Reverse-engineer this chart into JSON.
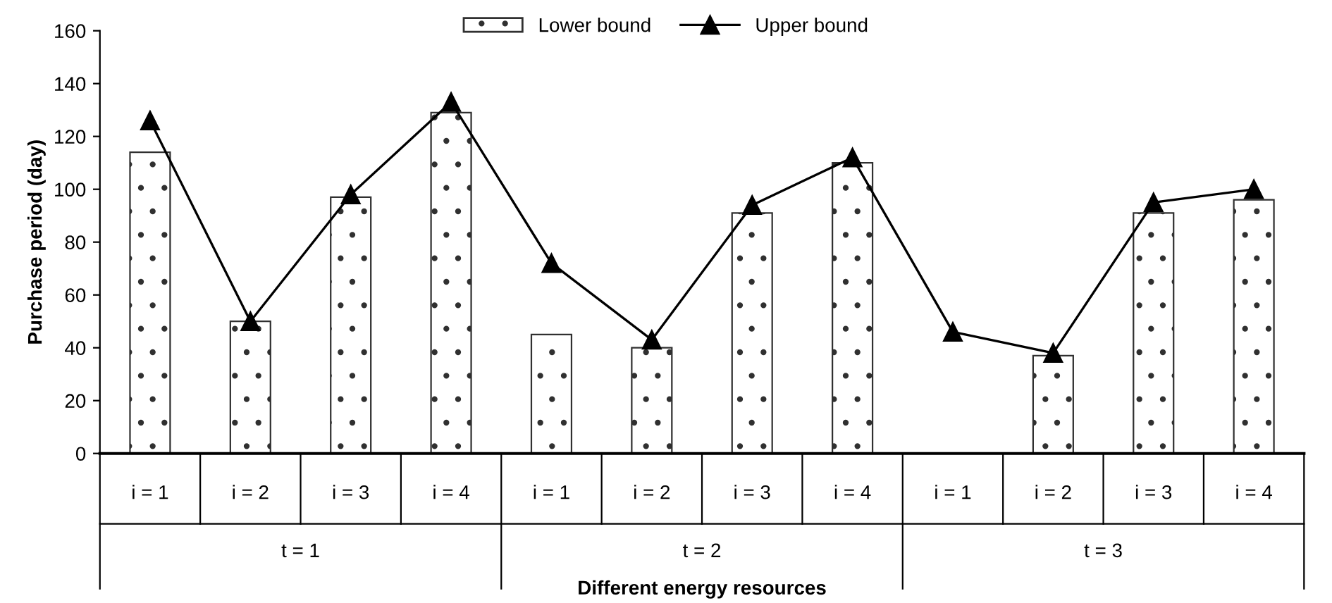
{
  "chart_data": {
    "type": "bar",
    "xlabel": "Different energy resources",
    "ylabel": "Purchase period (day)",
    "categories": [
      "i = 1",
      "i = 2",
      "i = 3",
      "i = 4",
      "i = 1",
      "i = 2",
      "i = 3",
      "i = 4",
      "i = 1",
      "i = 2",
      "i = 3",
      "i = 4"
    ],
    "annotations": [
      "t = 1",
      "t = 2",
      "t = 3"
    ],
    "series": [
      {
        "name": "Lower bound",
        "color": "#303030",
        "values": [
          114,
          50,
          97,
          129,
          45,
          40,
          91,
          110,
          null,
          37,
          91,
          96
        ]
      },
      {
        "name": "Upper bound",
        "type": "line",
        "color": "#000000",
        "marker": "triangle",
        "values": [
          126,
          50,
          98,
          133,
          72,
          43,
          94,
          112,
          46,
          38,
          95,
          100
        ]
      }
    ],
    "ylim": [
      0,
      160
    ],
    "yticks": [
      0,
      20,
      40,
      60,
      80,
      100,
      120,
      140,
      160
    ],
    "grid": false,
    "legend": "top"
  }
}
